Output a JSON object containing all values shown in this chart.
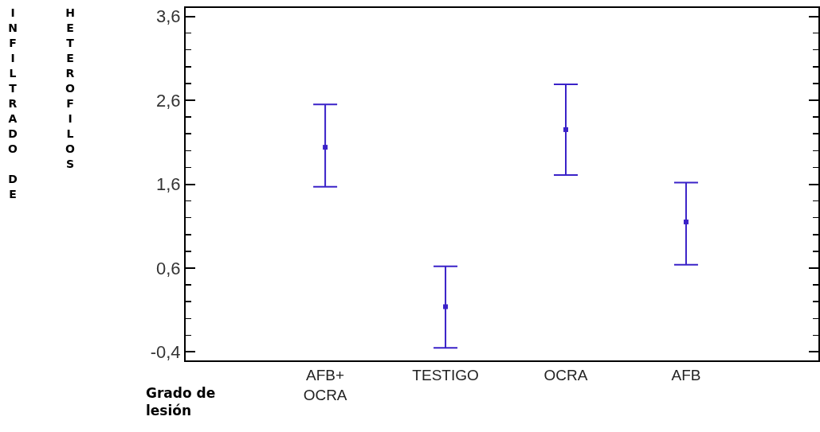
{
  "chart_data": {
    "type": "scatter",
    "xlabel": "Grado de lesión",
    "ylabel": "INFILTRADO DE HETEROFILOS",
    "categories": [
      "AFB+\nOCRA",
      "TESTIGO",
      "OCRA",
      "AFB"
    ],
    "series": [
      {
        "color": "#3a22c8",
        "values": [
          2.04,
          0.14,
          2.25,
          1.15
        ],
        "errors": [
          [
            1.57,
            2.55
          ],
          [
            -0.35,
            0.62
          ],
          [
            1.71,
            2.79
          ],
          [
            0.64,
            1.62
          ]
        ]
      }
    ],
    "ylim": [
      -0.5,
      3.7
    ],
    "yticks": [
      {
        "value": -0.4,
        "label": "-0,4"
      },
      {
        "value": 0.6,
        "label": "0,6"
      },
      {
        "value": 1.6,
        "label": "1,6"
      },
      {
        "value": 2.6,
        "label": "2,6"
      },
      {
        "value": 3.6,
        "label": "3,6"
      }
    ],
    "marker": "square"
  }
}
